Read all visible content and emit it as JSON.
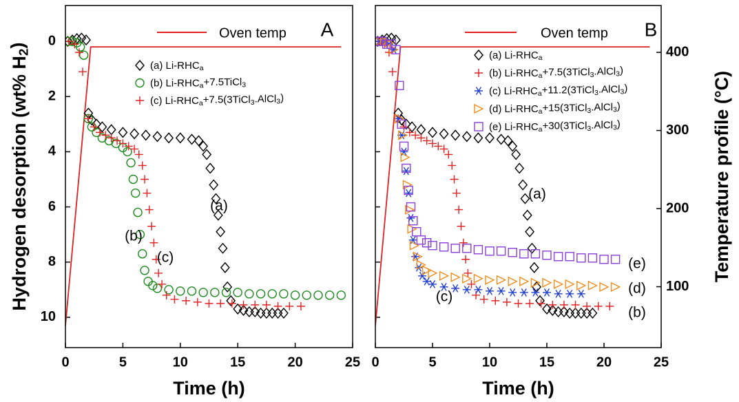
{
  "chart_data": [
    {
      "type": "scatter",
      "panel_label": "A",
      "xlabel": "Time (h)",
      "ylabel": "Hydrogen desorption (wt% H2)",
      "xlim": [
        0,
        25
      ],
      "xticks": [
        0,
        5,
        10,
        15,
        20,
        25
      ],
      "ylim": [
        11.1,
        -1.3
      ],
      "yticks": [
        0,
        2,
        4,
        6,
        8,
        10
      ],
      "ytick_labels": true,
      "y2lim": [
        22,
        460
      ],
      "series": [
        {
          "name": "Oven temp",
          "color": "#e02020",
          "marker": "line",
          "axis": "y2",
          "x": [
            0,
            2.2,
            24
          ],
          "values": [
            50,
            407,
            407
          ]
        },
        {
          "name": "(a) Li-RHCa",
          "color": "#000000",
          "marker": "diamond",
          "x": [
            0.2,
            0.6,
            1.0,
            1.4,
            1.8,
            2.0,
            2.3,
            2.7,
            3.2,
            4,
            5,
            6,
            7,
            8,
            9,
            10,
            11,
            11.6,
            12,
            12.3,
            12.6,
            12.9,
            13.1,
            13.3,
            13.5,
            13.7,
            13.9,
            14.1,
            14.4,
            15,
            15.5,
            16,
            16.5,
            17,
            17.5,
            18,
            18.5,
            19
          ],
          "values": [
            0,
            -0.05,
            -0.1,
            -0.12,
            -0.05,
            2.6,
            2.85,
            3.0,
            3.1,
            3.2,
            3.3,
            3.35,
            3.4,
            3.45,
            3.5,
            3.5,
            3.55,
            3.6,
            3.8,
            4.1,
            4.6,
            5.2,
            5.7,
            6.3,
            6.9,
            7.5,
            8.2,
            8.9,
            9.4,
            9.7,
            9.75,
            9.8,
            9.8,
            9.85,
            9.85,
            9.85,
            9.85,
            9.85
          ]
        },
        {
          "name": "(b) Li-RHCa+7.5TiCl3",
          "color": "#1a8a1a",
          "marker": "circle",
          "x": [
            0.2,
            0.6,
            1.0,
            1.3,
            1.6,
            2.0,
            2.3,
            2.7,
            3.2,
            3.8,
            4.4,
            5.0,
            5.4,
            5.7,
            5.9,
            6.1,
            6.3,
            6.5,
            6.7,
            6.9,
            7.2,
            7.6,
            8,
            9,
            10,
            11,
            12,
            13,
            14,
            15,
            16,
            17,
            18,
            19,
            20,
            21,
            22,
            23,
            24
          ],
          "values": [
            0,
            0,
            0.05,
            0.2,
            0.5,
            2.8,
            3.1,
            3.3,
            3.5,
            3.6,
            3.7,
            3.85,
            4.0,
            4.4,
            5.0,
            5.5,
            6.2,
            7.0,
            7.7,
            8.3,
            8.7,
            8.85,
            8.95,
            9.0,
            9.05,
            9.05,
            9.1,
            9.1,
            9.1,
            9.1,
            9.15,
            9.15,
            9.15,
            9.15,
            9.2,
            9.2,
            9.2,
            9.2,
            9.2
          ]
        },
        {
          "name": "(c) Li-RHCa+7.5(3TiCl3.AlCl3)",
          "color": "#e02020",
          "marker": "plus",
          "x": [
            0.3,
            0.8,
            1.2,
            1.5,
            2.0,
            2.5,
            3,
            3.5,
            4,
            4.5,
            5,
            5.5,
            6,
            6.4,
            6.7,
            6.9,
            7.1,
            7.3,
            7.5,
            7.7,
            7.9,
            8.1,
            8.4,
            8.8,
            9.5,
            10.5,
            11.5,
            12.5,
            13.5,
            14.5,
            15.5,
            16.5,
            17.5,
            18.5,
            19.5,
            20.5
          ],
          "values": [
            0,
            0.1,
            0.4,
            1.1,
            2.8,
            3.1,
            3.3,
            3.4,
            3.5,
            3.6,
            3.7,
            3.8,
            3.9,
            4.1,
            4.5,
            5.0,
            5.5,
            6.1,
            6.7,
            7.3,
            7.9,
            8.4,
            8.8,
            9.2,
            9.35,
            9.4,
            9.45,
            9.5,
            9.5,
            9.5,
            9.55,
            9.55,
            9.55,
            9.6,
            9.6,
            9.6
          ]
        }
      ],
      "annotations": [
        "(a)",
        "(b)",
        "(c)"
      ]
    },
    {
      "type": "scatter",
      "panel_label": "B",
      "xlabel": "Time (h)",
      "y2label": "Temperature profile (°C)",
      "xlim": [
        0,
        25
      ],
      "xticks": [
        0,
        5,
        10,
        15,
        20,
        25
      ],
      "ylim": [
        11.1,
        -1.3
      ],
      "yticks": [
        0,
        2,
        4,
        6,
        8,
        10
      ],
      "ytick_labels": false,
      "y2lim": [
        22,
        460
      ],
      "y2ticks": [
        100,
        200,
        300,
        400
      ],
      "series": [
        {
          "name": "Oven temp",
          "color": "#e02020",
          "marker": "line",
          "axis": "y2",
          "x": [
            0,
            2.2,
            24
          ],
          "values": [
            50,
            407,
            407
          ]
        },
        {
          "name": "(a) Li-RHCa",
          "color": "#000000",
          "marker": "diamond",
          "x": [
            0.2,
            0.6,
            1.0,
            1.4,
            1.8,
            2.0,
            2.3,
            2.7,
            3.2,
            4,
            5,
            6,
            7,
            8,
            9,
            10,
            11,
            11.6,
            12,
            12.3,
            12.6,
            12.9,
            13.1,
            13.3,
            13.5,
            13.7,
            13.9,
            14.1,
            14.4,
            15,
            15.5,
            16,
            16.5,
            17,
            17.5,
            18,
            18.5,
            19
          ],
          "values": [
            0,
            -0.05,
            -0.1,
            -0.12,
            -0.05,
            2.6,
            2.85,
            3.0,
            3.1,
            3.2,
            3.3,
            3.35,
            3.4,
            3.45,
            3.5,
            3.5,
            3.55,
            3.6,
            3.8,
            4.1,
            4.6,
            5.2,
            5.7,
            6.3,
            6.9,
            7.5,
            8.2,
            8.9,
            9.4,
            9.7,
            9.75,
            9.8,
            9.8,
            9.85,
            9.85,
            9.85,
            9.85,
            9.85
          ]
        },
        {
          "name": "(b) Li-RHCa+7.5(3TiCl3.AlCl3)",
          "color": "#e02020",
          "marker": "plus",
          "x": [
            0.3,
            0.8,
            1.2,
            1.5,
            2.0,
            2.5,
            3,
            3.5,
            4,
            4.5,
            5,
            5.5,
            6,
            6.4,
            6.7,
            6.9,
            7.1,
            7.3,
            7.5,
            7.7,
            7.9,
            8.1,
            8.4,
            8.8,
            9.5,
            10.5,
            11.5,
            12.5,
            13.5,
            14.5,
            15.5,
            16.5,
            17.5,
            18.5,
            19.5,
            20.5
          ],
          "values": [
            0,
            0.1,
            0.4,
            1.1,
            2.8,
            3.1,
            3.3,
            3.4,
            3.5,
            3.6,
            3.7,
            3.8,
            3.9,
            4.1,
            4.5,
            5.0,
            5.5,
            6.1,
            6.7,
            7.3,
            7.9,
            8.4,
            8.8,
            9.2,
            9.35,
            9.4,
            9.45,
            9.5,
            9.5,
            9.5,
            9.55,
            9.55,
            9.55,
            9.6,
            9.6,
            9.6
          ]
        },
        {
          "name": "(c) Li-RHCa+11.2(3TiCl3.AlCl3)",
          "color": "#1f3fd0",
          "marker": "asterisk",
          "x": [
            0.3,
            0.8,
            1.2,
            1.6,
            2.0,
            2.3,
            2.5,
            2.7,
            2.9,
            3.1,
            3.3,
            3.5,
            3.8,
            4.1,
            4.5,
            5,
            6,
            7,
            8,
            9,
            10,
            11,
            12,
            13,
            14,
            15,
            16,
            17,
            18
          ],
          "values": [
            0,
            0,
            0.1,
            0.3,
            2.8,
            3.4,
            4.0,
            4.7,
            5.5,
            6.4,
            7.2,
            7.8,
            8.2,
            8.5,
            8.7,
            8.8,
            8.9,
            8.95,
            9.0,
            9.0,
            9.05,
            9.05,
            9.1,
            9.1,
            9.1,
            9.1,
            9.15,
            9.15,
            9.15
          ]
        },
        {
          "name": "(d) Li-RHCa+15(3TiCl3.AlCl3)",
          "color": "#f08c1a",
          "marker": "triangle",
          "x": [
            0.3,
            0.8,
            1.2,
            1.6,
            2.1,
            2.4,
            2.6,
            2.8,
            3.0,
            3.2,
            3.4,
            3.7,
            4.0,
            4.5,
            5,
            6,
            7,
            8,
            9,
            10,
            11,
            12,
            13,
            14,
            15,
            16,
            17,
            18,
            19,
            20,
            21
          ],
          "values": [
            0,
            0,
            0.05,
            0.3,
            2.8,
            3.4,
            4.2,
            5.2,
            6.1,
            6.8,
            7.4,
            7.8,
            8.1,
            8.3,
            8.4,
            8.5,
            8.55,
            8.6,
            8.6,
            8.65,
            8.65,
            8.7,
            8.7,
            8.75,
            8.75,
            8.8,
            8.8,
            8.85,
            8.85,
            8.9,
            8.9
          ]
        },
        {
          "name": "(e) Li-RHCa+30(3TiCl3.AlCl3)",
          "color": "#8a3fd8",
          "marker": "square",
          "x": [
            0.2,
            0.6,
            1.0,
            1.4,
            1.8,
            2.1,
            2.3,
            2.5,
            2.7,
            2.9,
            3.1,
            3.3,
            3.6,
            4.0,
            4.5,
            5,
            6,
            7,
            8,
            9,
            10,
            11,
            12,
            13,
            14,
            15,
            16,
            17,
            18,
            19,
            20,
            21
          ],
          "values": [
            0,
            0,
            0.1,
            0.1,
            0.3,
            1.6,
            3.0,
            3.8,
            4.6,
            5.4,
            6.0,
            6.5,
            6.9,
            7.2,
            7.3,
            7.4,
            7.45,
            7.5,
            7.5,
            7.55,
            7.6,
            7.6,
            7.65,
            7.7,
            7.7,
            7.75,
            7.8,
            7.8,
            7.85,
            7.85,
            7.9,
            7.9
          ]
        }
      ],
      "annotations": [
        "(a)",
        "(b)",
        "(c)",
        "(d)",
        "(e)"
      ]
    }
  ]
}
